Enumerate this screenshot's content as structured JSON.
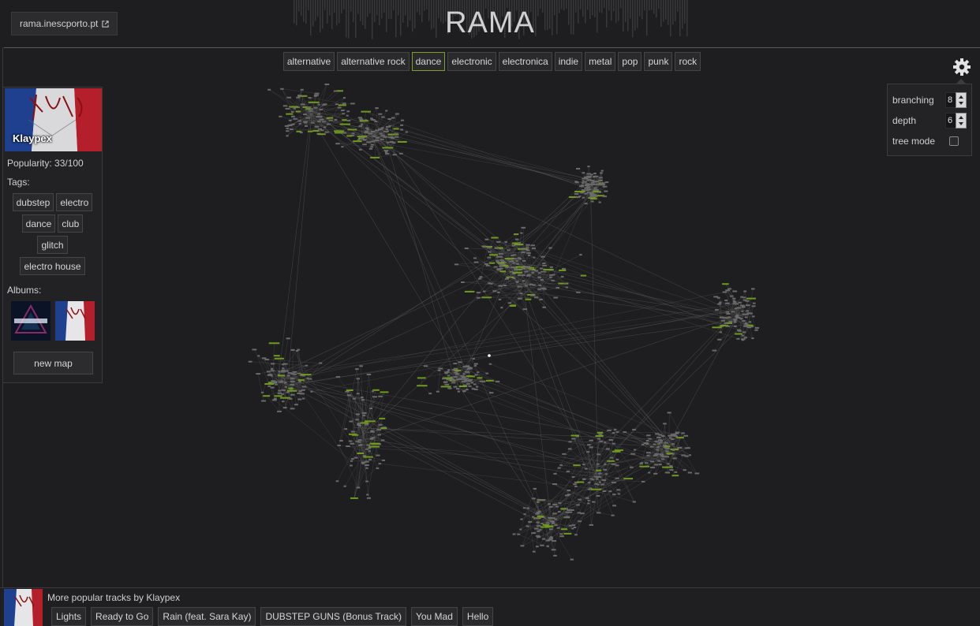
{
  "header": {
    "site_link": "rama.inescporto.pt",
    "title": "RAMA"
  },
  "genre_tags": [
    {
      "label": "alternative",
      "active": false
    },
    {
      "label": "alternative rock",
      "active": false
    },
    {
      "label": "dance",
      "active": true
    },
    {
      "label": "electronic",
      "active": false
    },
    {
      "label": "electronica",
      "active": false
    },
    {
      "label": "indie",
      "active": false
    },
    {
      "label": "metal",
      "active": false
    },
    {
      "label": "pop",
      "active": false
    },
    {
      "label": "punk",
      "active": false
    },
    {
      "label": "rock",
      "active": false
    }
  ],
  "settings": {
    "branching_label": "branching",
    "branching_value": "8",
    "depth_label": "depth",
    "depth_value": "6",
    "tree_mode_label": "tree mode",
    "tree_mode_checked": false
  },
  "artist": {
    "name": "Klaypex",
    "popularity": "Popularity: 33/100",
    "tags_label": "Tags:",
    "tag_rows": [
      [
        "dubstep",
        "electro"
      ],
      [
        "dance",
        "club"
      ],
      [
        "glitch"
      ],
      [
        "electro house"
      ]
    ],
    "albums_label": "Albums:",
    "album_count": 2,
    "new_map_label": "new map"
  },
  "bottom": {
    "label": "More popular tracks by Klaypex",
    "tracks": [
      "Lights",
      "Ready to Go",
      "Rain (feat. Sara Kay)",
      "DUBSTEP GUNS (Bonus Track)",
      "You Mad",
      "Hello"
    ]
  },
  "colors": {
    "accent": "#7ea12a",
    "background": "#1e1e20",
    "graph_edge": "#5a5a5a",
    "graph_node_highlight": "#6f9a1e"
  },
  "icons": {
    "settings": "gear-icon",
    "external_link": "external-link-icon"
  }
}
